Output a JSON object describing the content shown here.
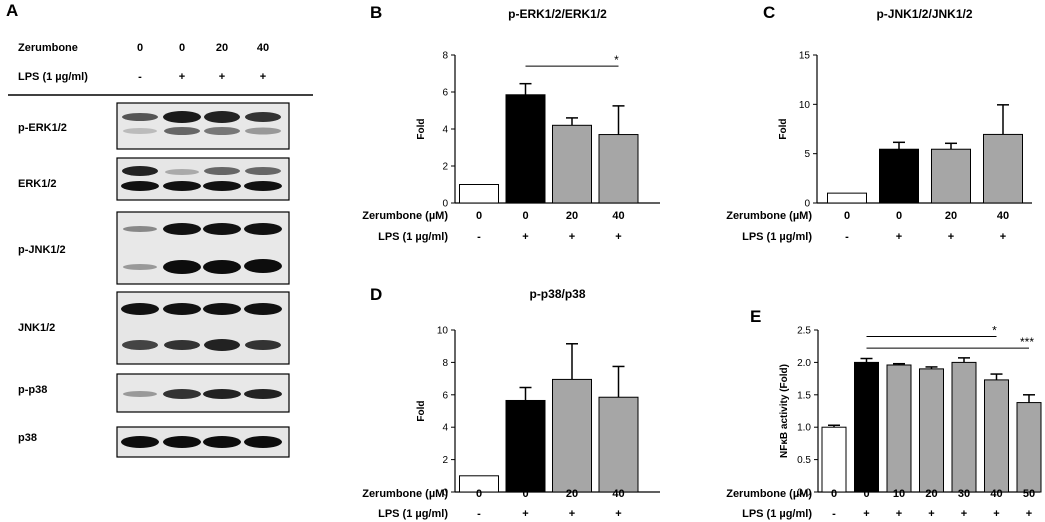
{
  "blot": {
    "letter": "A",
    "row_labels": [
      "Zerumbone",
      "LPS (1 µg/ml)"
    ],
    "zerumbone": [
      "0",
      "0",
      "20",
      "40"
    ],
    "lps": [
      "-",
      "+",
      "+",
      "+"
    ],
    "bands": [
      "p-ERK1/2",
      "ERK1/2",
      "p-JNK1/2",
      "JNK1/2",
      "p-p38",
      "p38"
    ]
  },
  "chart_data": [
    {
      "letter": "B",
      "type": "bar",
      "title": "p-ERK1/2/ERK1/2",
      "ylabel": "Fold",
      "ylim": [
        0,
        8
      ],
      "yticks": [
        "0",
        "2",
        "4",
        "6",
        "8"
      ],
      "row_labels": [
        "Zerumbone (µM)",
        "LPS (1 µg/ml)"
      ],
      "categories": [
        "0",
        "0",
        "20",
        "40"
      ],
      "lps": [
        "-",
        "+",
        "+",
        "+"
      ],
      "values": [
        1.0,
        5.85,
        4.2,
        3.7
      ],
      "errors": [
        0,
        0.6,
        0.4,
        1.55
      ],
      "colors": [
        "#ffffff",
        "#000000",
        "#a6a6a6",
        "#a6a6a6"
      ],
      "significance": [
        {
          "from": 1,
          "to": 3,
          "y": 7.4,
          "label": "*"
        }
      ]
    },
    {
      "letter": "C",
      "type": "bar",
      "title": "p-JNK1/2/JNK1/2",
      "ylabel": "Fold",
      "ylim": [
        0,
        15
      ],
      "yticks": [
        "0",
        "5",
        "10",
        "15"
      ],
      "row_labels": [
        "Zerumbone (µM)",
        "LPS (1 µg/ml)"
      ],
      "categories": [
        "0",
        "0",
        "20",
        "40"
      ],
      "lps": [
        "-",
        "+",
        "+",
        "+"
      ],
      "values": [
        1.0,
        5.45,
        5.45,
        6.95
      ],
      "errors": [
        0,
        0.7,
        0.6,
        3.0
      ],
      "colors": [
        "#ffffff",
        "#000000",
        "#a6a6a6",
        "#a6a6a6"
      ],
      "significance": []
    },
    {
      "letter": "D",
      "type": "bar",
      "title": "p-p38/p38",
      "ylabel": "Fold",
      "ylim": [
        0,
        10
      ],
      "yticks": [
        "0",
        "2",
        "4",
        "6",
        "8",
        "10"
      ],
      "row_labels": [
        "Zerumbone (µM)",
        "LPS (1 µg/ml)"
      ],
      "categories": [
        "0",
        "0",
        "20",
        "40"
      ],
      "lps": [
        "-",
        "+",
        "+",
        "+"
      ],
      "values": [
        1.0,
        5.65,
        6.95,
        5.85
      ],
      "errors": [
        0,
        0.8,
        2.2,
        1.9
      ],
      "colors": [
        "#ffffff",
        "#000000",
        "#a6a6a6",
        "#a6a6a6"
      ],
      "significance": []
    },
    {
      "letter": "E",
      "type": "bar",
      "title": "",
      "ylabel": "NFκB activity (Fold)",
      "ylim": [
        0,
        2.5
      ],
      "yticks": [
        "0.0",
        "0.5",
        "1.0",
        "1.5",
        "2.0",
        "2.5"
      ],
      "row_labels": [
        "Zerumbone (µM)",
        "LPS (1 µg/ml)"
      ],
      "categories": [
        "0",
        "0",
        "10",
        "20",
        "30",
        "40",
        "50"
      ],
      "lps": [
        "-",
        "+",
        "+",
        "+",
        "+",
        "+",
        "+"
      ],
      "values": [
        1.0,
        2.0,
        1.96,
        1.9,
        2.0,
        1.73,
        1.38
      ],
      "errors": [
        0.03,
        0.06,
        0.02,
        0.03,
        0.07,
        0.09,
        0.12
      ],
      "colors": [
        "#ffffff",
        "#000000",
        "#a6a6a6",
        "#a6a6a6",
        "#a6a6a6",
        "#a6a6a6",
        "#a6a6a6"
      ],
      "significance": [
        {
          "from": 1,
          "to": 5,
          "y": 2.4,
          "label": "*"
        },
        {
          "from": 1,
          "to": 6,
          "y": 2.22,
          "label": "***"
        }
      ]
    }
  ]
}
